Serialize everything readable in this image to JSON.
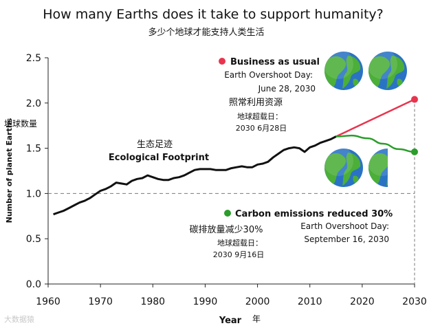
{
  "title": "How many Earths does it take to support humanity?",
  "subtitle_cn": "多少个地球才能支持人类生活",
  "watermark": "大数据猿",
  "colors": {
    "footprint": "#111111",
    "business": "#e8344e",
    "carbon": "#2a9d2a",
    "dashed": "#777777",
    "earth_ocean": "#2a73c4",
    "earth_land": "#4caf38"
  },
  "chart_data": {
    "type": "line",
    "xlabel": "Year",
    "xlabel_cn": "年",
    "ylabel": "Number of planet Earths",
    "ylabel_cn": "地球数量",
    "xlim": [
      1960,
      2030
    ],
    "ylim": [
      0.0,
      2.5
    ],
    "x_ticks": [
      1960,
      1970,
      1980,
      1990,
      2000,
      2010,
      2020,
      2030
    ],
    "y_ticks": [
      "0.0",
      "0.5",
      "1.0",
      "1.5",
      "2.0",
      "2.5"
    ],
    "y_tick_values": [
      0.0,
      0.5,
      1.0,
      1.5,
      2.0,
      2.5
    ],
    "reference_line": 1.0,
    "series": [
      {
        "name": "Ecological Footprint",
        "name_cn": "生态足迹",
        "x": [
          1961,
          1962,
          1963,
          1964,
          1965,
          1966,
          1967,
          1968,
          1969,
          1970,
          1971,
          1972,
          1973,
          1974,
          1975,
          1976,
          1977,
          1978,
          1979,
          1980,
          1981,
          1982,
          1983,
          1984,
          1985,
          1986,
          1987,
          1988,
          1989,
          1990,
          1991,
          1992,
          1993,
          1994,
          1995,
          1996,
          1997,
          1998,
          1999,
          2000,
          2001,
          2002,
          2003,
          2004,
          2005,
          2006,
          2007,
          2008,
          2009,
          2010,
          2011,
          2012,
          2013,
          2014,
          2015
        ],
        "y": [
          0.77,
          0.79,
          0.81,
          0.84,
          0.87,
          0.9,
          0.92,
          0.95,
          0.99,
          1.03,
          1.05,
          1.08,
          1.12,
          1.11,
          1.1,
          1.14,
          1.16,
          1.17,
          1.2,
          1.18,
          1.16,
          1.15,
          1.15,
          1.17,
          1.18,
          1.2,
          1.23,
          1.26,
          1.27,
          1.27,
          1.27,
          1.26,
          1.26,
          1.26,
          1.28,
          1.29,
          1.3,
          1.29,
          1.29,
          1.32,
          1.33,
          1.35,
          1.4,
          1.44,
          1.48,
          1.5,
          1.51,
          1.5,
          1.46,
          1.51,
          1.53,
          1.56,
          1.58,
          1.6,
          1.63
        ]
      },
      {
        "name": "Business as usual",
        "x": [
          2015,
          2030
        ],
        "y": [
          1.63,
          2.04
        ]
      },
      {
        "name": "Carbon emissions reduced 30%",
        "x": [
          2015,
          2018,
          2021,
          2024,
          2027,
          2030
        ],
        "y": [
          1.63,
          1.64,
          1.61,
          1.55,
          1.49,
          1.46
        ]
      }
    ],
    "annotations": {
      "footprint_label_cn": "生态足迹",
      "footprint_label": "Ecological Footprint",
      "business": {
        "title": "Business as usual",
        "line1": "Earth Overshoot Day:",
        "line2": "June 28, 2030",
        "cn1": "照常利用资源",
        "cn2": "地球超载日：",
        "cn3": "2030 6月28日",
        "earths": 2
      },
      "carbon": {
        "title": "Carbon emissions reduced 30%",
        "line1": "Earth Overshoot Day:",
        "line2": "September 16, 2030",
        "cn1": "碳排放量减少30%",
        "cn2": "地球超载日：",
        "cn3": "2030 9月16日",
        "earths": 1.5
      }
    }
  }
}
